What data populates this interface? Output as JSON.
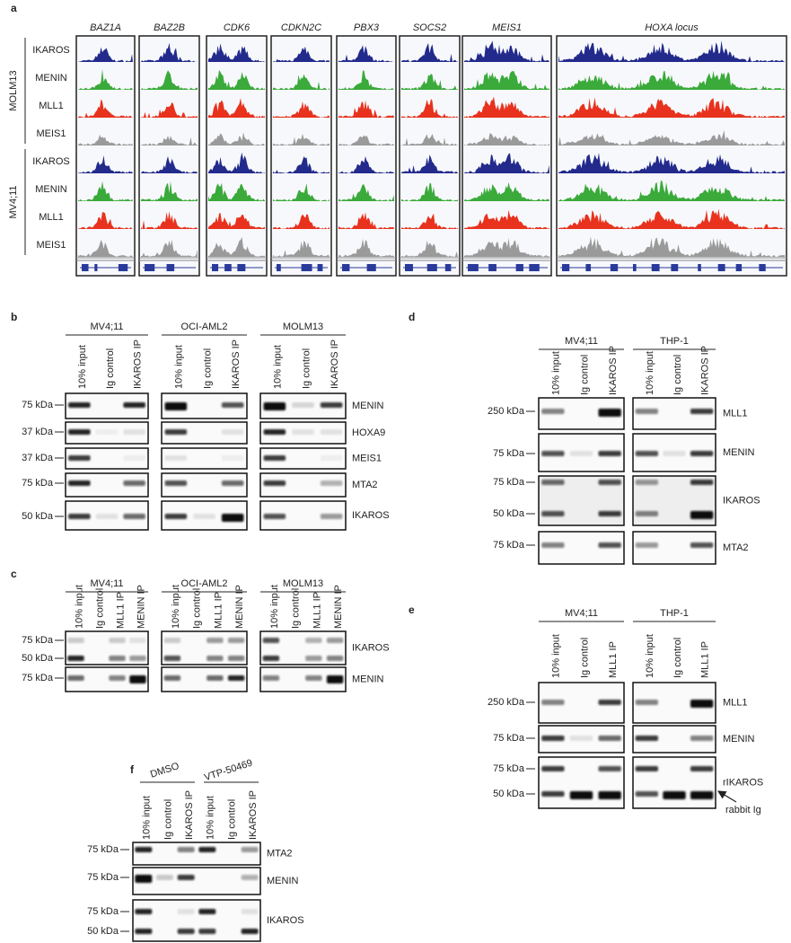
{
  "panel_a": {
    "label": "a",
    "genes": [
      "BAZ1A",
      "BAZ2B",
      "CDK6",
      "CDKN2C",
      "PBX3",
      "SOCS2",
      "MEIS1",
      "HOXA locus"
    ],
    "groups": [
      {
        "name": "MOLM13",
        "tracks": [
          "IKAROS",
          "MENIN",
          "MLL1",
          "MEIS1"
        ]
      },
      {
        "name": "MV4;11",
        "tracks": [
          "IKAROS",
          "MENIN",
          "MLL1",
          "MEIS1"
        ]
      }
    ]
  },
  "panel_b": {
    "label": "b",
    "cell_lines": [
      "MV4;11",
      "OCI-AML2",
      "MOLM13"
    ],
    "lanes": [
      "10% input",
      "Ig control",
      "IKAROS IP"
    ],
    "rows": [
      {
        "markers": [
          "75 kDa"
        ],
        "protein": "MENIN"
      },
      {
        "markers": [
          "37 kDa"
        ],
        "protein": "HOXA9"
      },
      {
        "markers": [
          "37 kDa"
        ],
        "protein": "MEIS1"
      },
      {
        "markers": [
          "75 kDa"
        ],
        "protein": "MTA2"
      },
      {
        "markers": [
          "50 kDa"
        ],
        "protein": "IKAROS"
      }
    ]
  },
  "panel_c": {
    "label": "c",
    "cell_lines": [
      "MV4;11",
      "OCI-AML2",
      "MOLM13"
    ],
    "lanes": [
      "10% input",
      "Ig control",
      "MLL1 IP",
      "MENIN IP"
    ],
    "rows": [
      {
        "markers": [
          "75 kDa",
          "50 kDa"
        ],
        "protein": "IKAROS"
      },
      {
        "markers": [
          "75 kDa"
        ],
        "protein": "MENIN"
      }
    ]
  },
  "panel_d": {
    "label": "d",
    "cell_lines": [
      "MV4;11",
      "THP-1"
    ],
    "lanes": [
      "10% input",
      "Ig control",
      "IKAROS IP"
    ],
    "rows": [
      {
        "markers": [
          "250 kDa"
        ],
        "protein": "MLL1"
      },
      {
        "markers": [
          "75 kDa"
        ],
        "protein": "MENIN"
      },
      {
        "markers": [
          "75 kDa",
          "50 kDa"
        ],
        "protein": "IKAROS"
      },
      {
        "markers": [
          "75 kDa"
        ],
        "protein": "MTA2"
      }
    ]
  },
  "panel_e": {
    "label": "e",
    "cell_lines": [
      "MV4;11",
      "THP-1"
    ],
    "lanes": [
      "10% input",
      "Ig control",
      "MLL1 IP"
    ],
    "rows": [
      {
        "markers": [
          "250 kDa"
        ],
        "protein": "MLL1"
      },
      {
        "markers": [
          "75 kDa"
        ],
        "protein": "MENIN"
      },
      {
        "markers": [
          "75 kDa",
          "50 kDa"
        ],
        "protein": "rIKAROS"
      }
    ],
    "annotation": "rabbit Ig"
  },
  "panel_f": {
    "label": "f",
    "cell_lines": [
      "DMSO",
      "VTP-50469"
    ],
    "lanes": [
      "10% input",
      "Ig control",
      "IKAROS IP"
    ],
    "rows": [
      {
        "markers": [
          "75 kDa"
        ],
        "protein": "MTA2"
      },
      {
        "markers": [
          "75 kDa"
        ],
        "protein": "MENIN"
      },
      {
        "markers": [
          "75 kDa",
          "50 kDa"
        ],
        "protein": "IKAROS"
      }
    ]
  }
}
